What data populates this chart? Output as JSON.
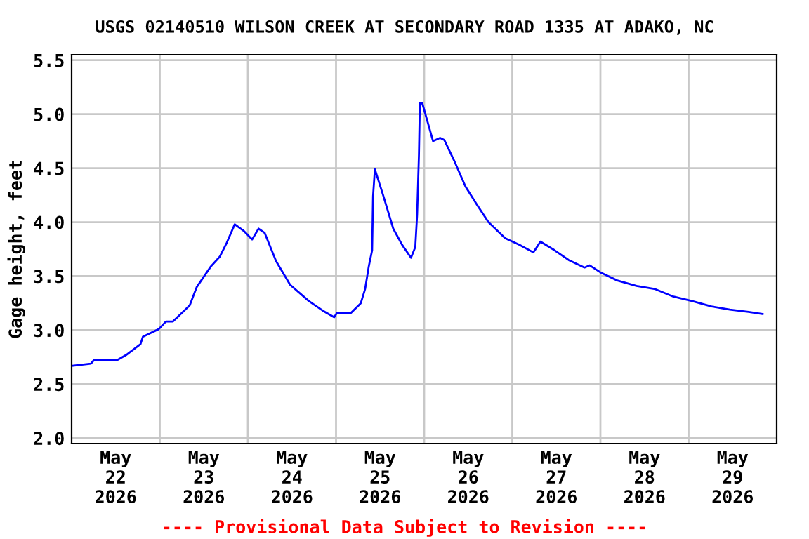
{
  "chart_data": {
    "type": "line",
    "title": "USGS 02140510 WILSON CREEK AT SECONDARY ROAD 1335 AT ADAKO, NC",
    "ylabel": "Gage height, feet",
    "annotations": [
      "---- Provisional Data Subject to Revision ----"
    ],
    "x": [
      "2026-05-22T00:15",
      "2026-05-22T05:15",
      "2026-05-22T06:00",
      "2026-05-22T12:15",
      "2026-05-22T14:50",
      "2026-05-22T18:45",
      "2026-05-22T19:25",
      "2026-05-22T23:45",
      "2026-05-23T01:40",
      "2026-05-23T03:35",
      "2026-05-23T08:10",
      "2026-05-23T10:05",
      "2026-05-23T13:55",
      "2026-05-23T16:20",
      "2026-05-23T18:15",
      "2026-05-23T20:25",
      "2026-05-23T22:50",
      "2026-05-24T01:10",
      "2026-05-24T02:55",
      "2026-05-24T04:35",
      "2026-05-24T07:40",
      "2026-05-24T11:30",
      "2026-05-24T16:35",
      "2026-05-24T20:25",
      "2026-05-24T23:30",
      "2026-05-25T00:15",
      "2026-05-25T04:05",
      "2026-05-25T06:45",
      "2026-05-25T07:55",
      "2026-05-25T08:55",
      "2026-05-25T09:50",
      "2026-05-25T10:05",
      "2026-05-25T10:35",
      "2026-05-25T12:55",
      "2026-05-25T15:35",
      "2026-05-25T18:00",
      "2026-05-25T20:25",
      "2026-05-25T21:35",
      "2026-05-25T22:05",
      "2026-05-25T22:35",
      "2026-05-25T22:50",
      "2026-05-25T23:30",
      "2026-05-26T00:30",
      "2026-05-26T02:25",
      "2026-05-26T04:20",
      "2026-05-26T05:30",
      "2026-05-26T08:10",
      "2026-05-26T11:15",
      "2026-05-26T14:25",
      "2026-05-26T17:30",
      "2026-05-26T22:05",
      "2026-05-27T01:55",
      "2026-05-27T05:45",
      "2026-05-27T07:40",
      "2026-05-27T11:30",
      "2026-05-27T15:20",
      "2026-05-27T19:40",
      "2026-05-27T21:05",
      "2026-05-28T00:15",
      "2026-05-28T04:35",
      "2026-05-28T09:50",
      "2026-05-28T14:55",
      "2026-05-28T19:55",
      "2026-05-29T00:55",
      "2026-05-29T06:15",
      "2026-05-29T11:15",
      "2026-05-29T16:20",
      "2026-05-29T20:10"
    ],
    "series": [
      {
        "color": "#0000ff",
        "values": [
          2.67,
          2.69,
          2.72,
          2.72,
          2.77,
          2.87,
          2.94,
          3.01,
          3.08,
          3.08,
          3.23,
          3.4,
          3.59,
          3.68,
          3.81,
          3.98,
          3.92,
          3.84,
          3.94,
          3.9,
          3.64,
          3.42,
          3.27,
          3.18,
          3.12,
          3.16,
          3.16,
          3.25,
          3.38,
          3.59,
          3.74,
          4.24,
          4.49,
          4.24,
          3.94,
          3.79,
          3.67,
          3.77,
          4.07,
          4.63,
          5.1,
          5.1,
          4.98,
          4.75,
          4.78,
          4.76,
          4.57,
          4.33,
          4.16,
          4.0,
          3.85,
          3.79,
          3.72,
          3.82,
          3.74,
          3.65,
          3.58,
          3.6,
          3.53,
          3.46,
          3.41,
          3.38,
          3.31,
          3.27,
          3.22,
          3.19,
          3.17,
          3.15
        ]
      }
    ],
    "xlim": [
      "2026-05-22T00:00",
      "2026-05-30T00:00"
    ],
    "xticks": [
      {
        "value": "2026-05-22T12:00",
        "label": "May\n22\n2026"
      },
      {
        "value": "2026-05-23T00:00",
        "label": null
      },
      {
        "value": "2026-05-23T12:00",
        "label": "May\n23\n2026"
      },
      {
        "value": "2026-05-24T00:00",
        "label": null
      },
      {
        "value": "2026-05-24T12:00",
        "label": "May\n24\n2026"
      },
      {
        "value": "2026-05-25T00:00",
        "label": null
      },
      {
        "value": "2026-05-25T12:00",
        "label": "May\n25\n2026"
      },
      {
        "value": "2026-05-26T00:00",
        "label": null
      },
      {
        "value": "2026-05-26T12:00",
        "label": "May\n26\n2026"
      },
      {
        "value": "2026-05-27T00:00",
        "label": null
      },
      {
        "value": "2026-05-27T12:00",
        "label": "May\n27\n2026"
      },
      {
        "value": "2026-05-28T00:00",
        "label": null
      },
      {
        "value": "2026-05-28T12:00",
        "label": "May\n28\n2026"
      },
      {
        "value": "2026-05-29T00:00",
        "label": null
      },
      {
        "value": "2026-05-29T12:00",
        "label": "May\n29\n2026"
      }
    ],
    "ylim": [
      1.95,
      5.55
    ],
    "yticks": [
      {
        "value": 2,
        "label": "2.0"
      },
      2.5,
      {
        "value": 3,
        "label": "3.0"
      },
      3.5,
      {
        "value": 4,
        "label": "4.0"
      },
      4.5,
      {
        "value": 5,
        "label": "5.0"
      },
      5.5
    ],
    "grid": true,
    "legend": false,
    "marker": "none",
    "line_style": "solid"
  }
}
